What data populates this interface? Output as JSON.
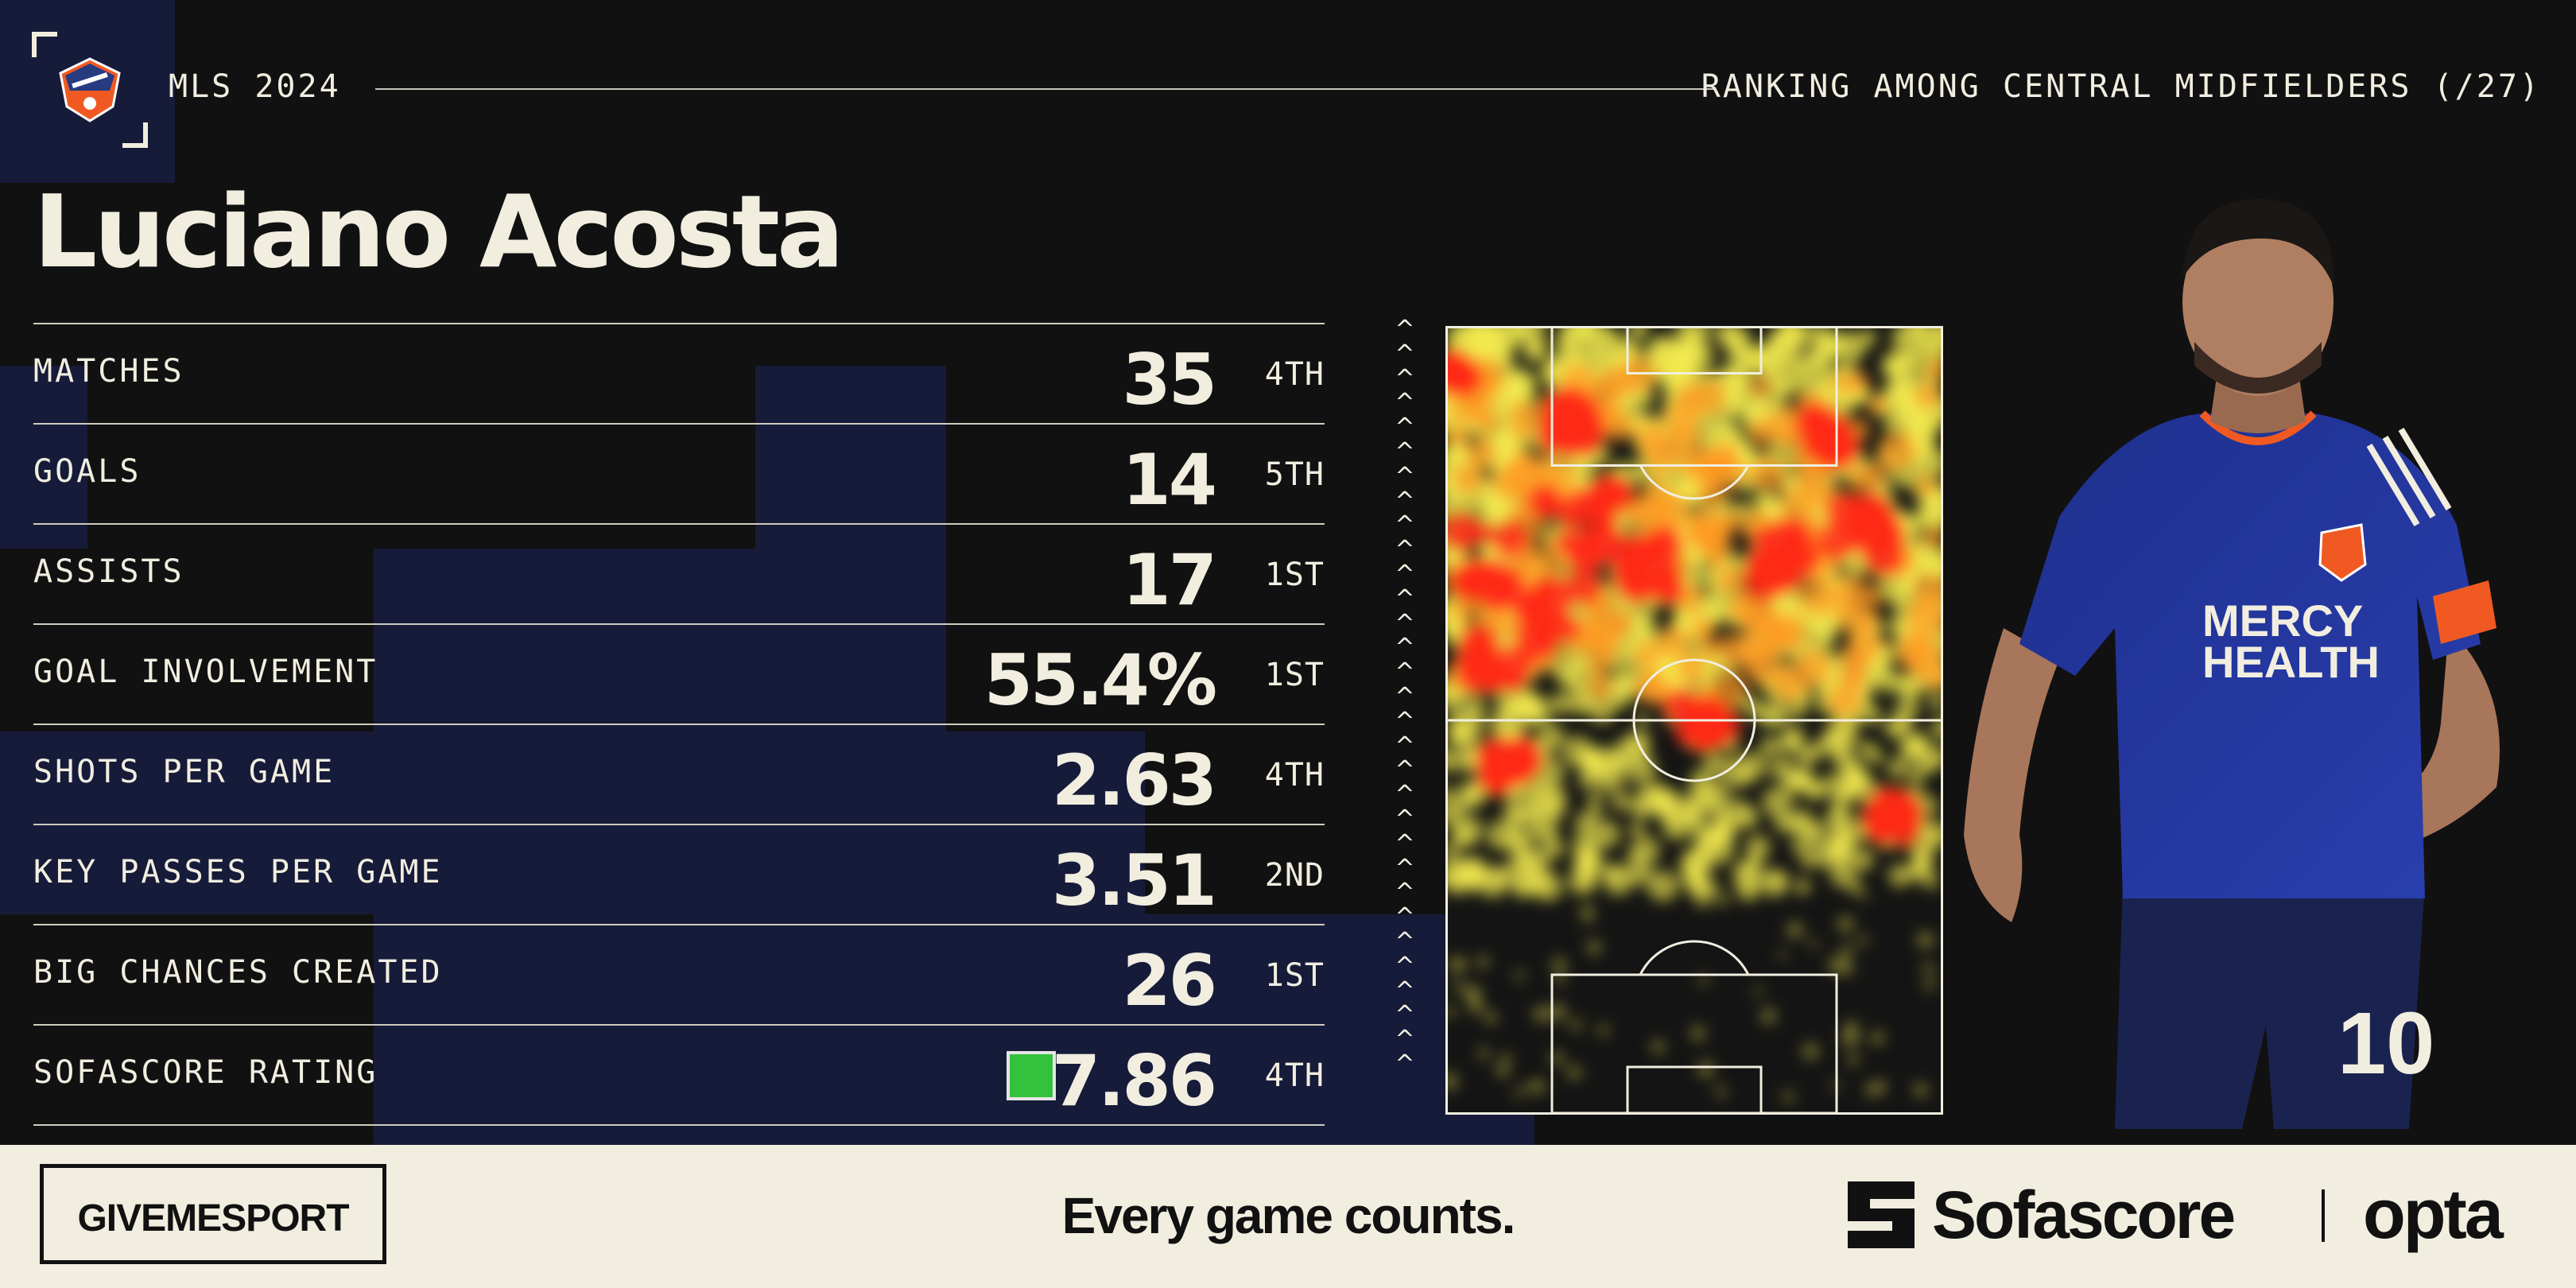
{
  "header": {
    "league": "MLS 2024",
    "ranking_context": "RANKING AMONG CENTRAL MIDFIELDERS (/27)"
  },
  "player": {
    "name": "Luciano Acosta",
    "shirt_sponsor_line1": "MERCY",
    "shirt_sponsor_line2": "HEALTH",
    "shirt_number": "10"
  },
  "stats": [
    {
      "label": "MATCHES",
      "value": "35",
      "rank": "4TH"
    },
    {
      "label": "GOALS",
      "value": "14",
      "rank": "5TH"
    },
    {
      "label": "ASSISTS",
      "value": "17",
      "rank": "1ST"
    },
    {
      "label": "GOAL INVOLVEMENT",
      "value": "55.4%",
      "rank": "1ST"
    },
    {
      "label": "SHOTS PER GAME",
      "value": "2.63",
      "rank": "4TH"
    },
    {
      "label": "KEY PASSES PER GAME",
      "value": "3.51",
      "rank": "2ND"
    },
    {
      "label": "BIG CHANCES CREATED",
      "value": "26",
      "rank": "1ST"
    },
    {
      "label": "SOFASCORE RATING",
      "value": "7.86",
      "rank": "4TH"
    }
  ],
  "colors": {
    "background": "#111111",
    "text": "#f1eee0",
    "navy_block": "#171b3a",
    "rating_badge": "#34c23c",
    "footer_bg": "#f1eee0",
    "heat_low": "#f2e94e",
    "heat_high": "#ff2a1a"
  },
  "icons": {
    "club": "fc-cincinnati-crest-icon",
    "direction": "chevron-up-icon",
    "sofascore": "sofascore-logo-icon"
  },
  "footer": {
    "brand": "GIVEMESPORT",
    "tagline": "Every game counts.",
    "partner1": "Sofascore",
    "partner2": "opta"
  }
}
